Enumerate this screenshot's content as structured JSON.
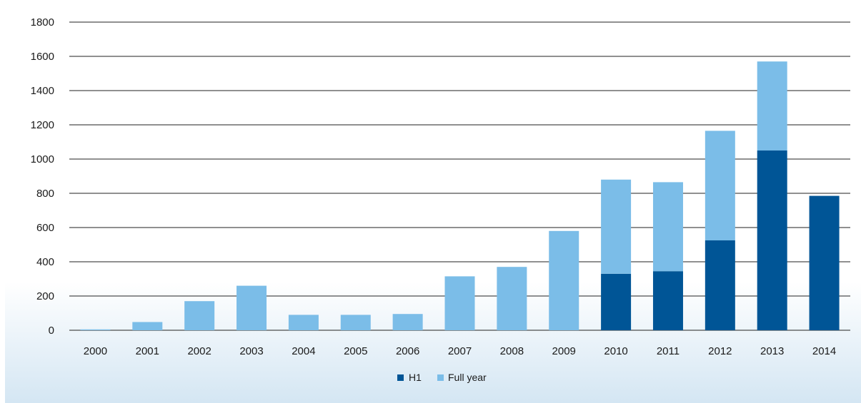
{
  "chart_data": {
    "type": "bar",
    "stacked": true,
    "categories": [
      "2000",
      "2001",
      "2002",
      "2003",
      "2004",
      "2005",
      "2006",
      "2007",
      "2008",
      "2009",
      "2010",
      "2011",
      "2012",
      "2013",
      "2014"
    ],
    "series": [
      {
        "name": "H1",
        "color": "#005596",
        "values": [
          0,
          0,
          0,
          0,
          0,
          0,
          0,
          0,
          0,
          0,
          330,
          345,
          525,
          1050,
          785
        ]
      },
      {
        "name": "Full year",
        "color": "#7bbde8",
        "values": [
          5,
          48,
          170,
          260,
          90,
          90,
          95,
          315,
          370,
          580,
          550,
          520,
          640,
          520,
          0
        ]
      }
    ],
    "totals": [
      5,
      48,
      170,
      260,
      90,
      90,
      95,
      315,
      370,
      580,
      880,
      865,
      1165,
      1570,
      785
    ],
    "ylim": [
      0,
      1800
    ],
    "yticks": [
      0,
      200,
      400,
      600,
      800,
      1000,
      1200,
      1400,
      1600,
      1800
    ],
    "grid": true,
    "legend_position": "bottom-center",
    "title": "",
    "xlabel": "",
    "ylabel": ""
  },
  "legend": {
    "items": [
      {
        "label": "H1",
        "color": "#005596"
      },
      {
        "label": "Full year",
        "color": "#7bbde8"
      }
    ]
  }
}
